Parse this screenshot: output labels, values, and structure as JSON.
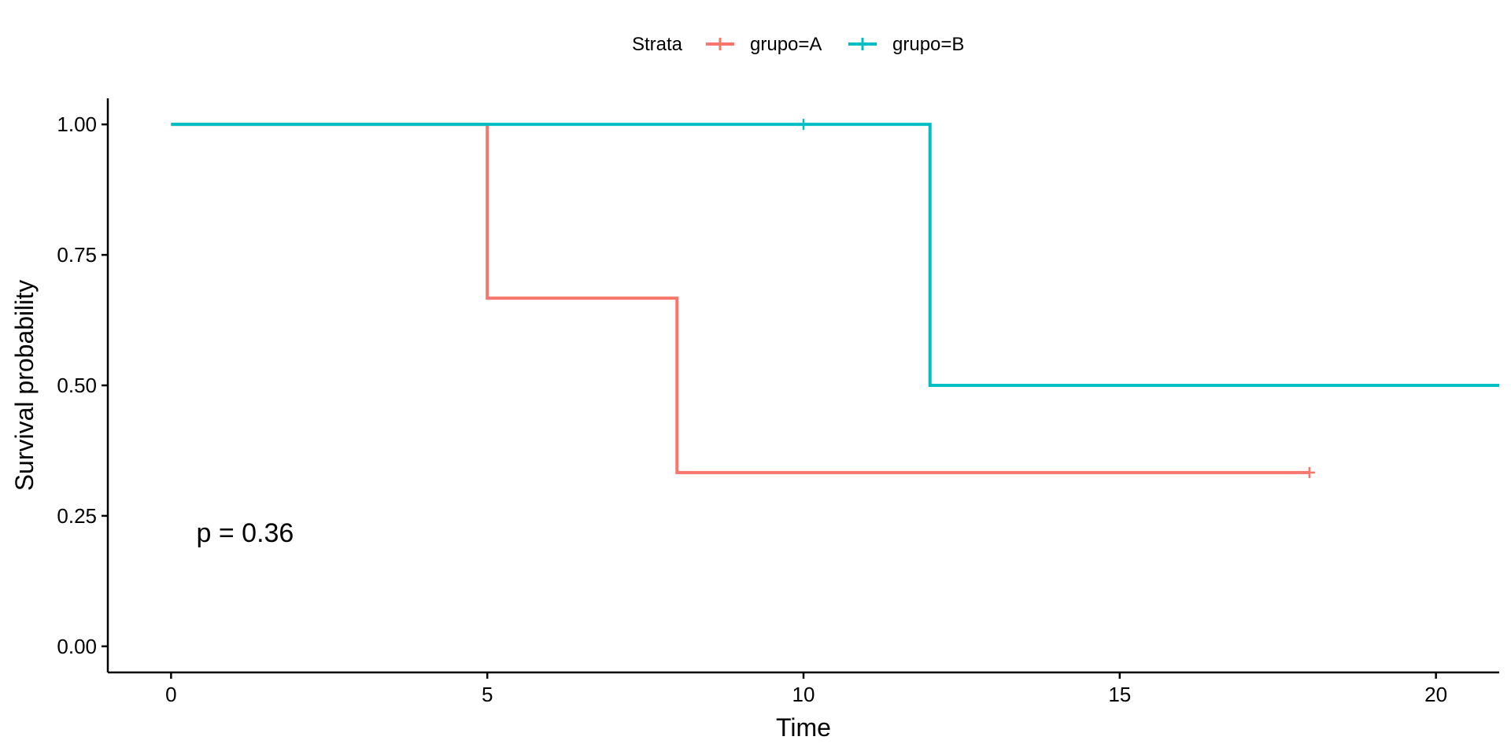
{
  "chart_data": {
    "type": "line",
    "title": "",
    "xlabel": "Time",
    "ylabel": "Survival probability",
    "xlim": [
      -1,
      21
    ],
    "ylim": [
      -0.05,
      1.05
    ],
    "x_ticks": [
      0,
      5,
      10,
      15,
      20
    ],
    "y_ticks": [
      0.0,
      0.25,
      0.5,
      0.75,
      1.0
    ],
    "y_tick_labels": [
      "0.00",
      "0.25",
      "0.50",
      "0.75",
      "1.00"
    ],
    "grid": false,
    "legend": {
      "title": "Strata",
      "placement": "top"
    },
    "annotation": "p = 0.36",
    "annotation_pos": [
      0.4,
      0.2
    ],
    "series": [
      {
        "name": "grupo=A",
        "color": "#F8766D",
        "step": "post",
        "x": [
          0,
          5,
          8,
          18
        ],
        "y": [
          1.0,
          0.667,
          0.333,
          0.333
        ],
        "censored": [
          {
            "x": 18,
            "y": 0.333
          }
        ]
      },
      {
        "name": "grupo=B",
        "color": "#00BFC4",
        "step": "post",
        "x": [
          0,
          12,
          21
        ],
        "y": [
          1.0,
          0.5,
          0.5
        ],
        "censored": [
          {
            "x": 10,
            "y": 1.0
          }
        ]
      }
    ]
  }
}
